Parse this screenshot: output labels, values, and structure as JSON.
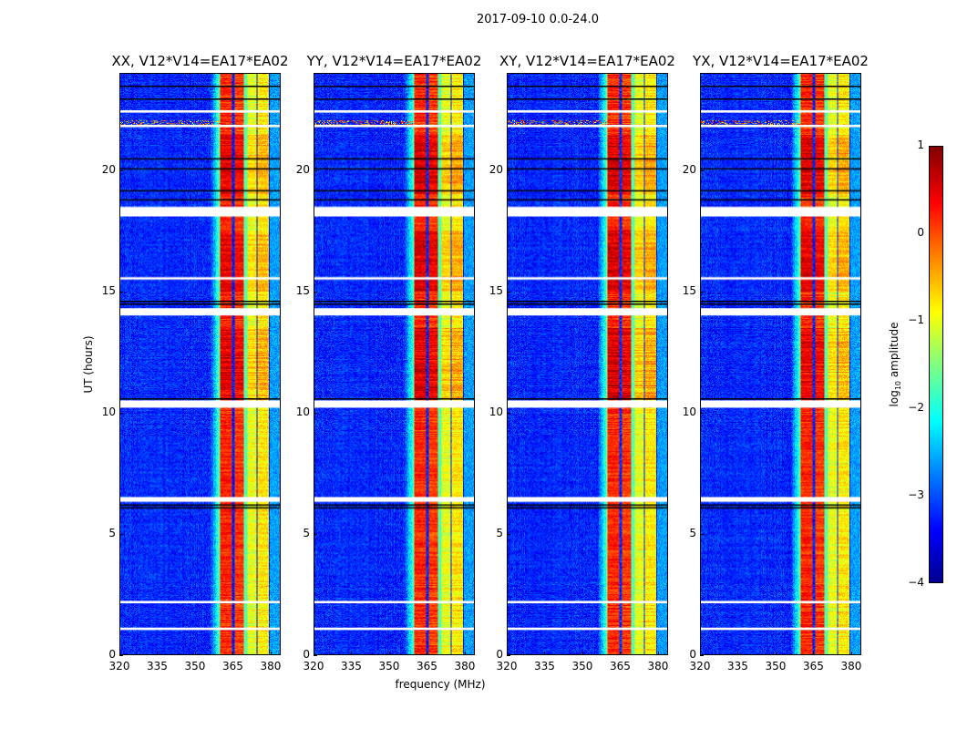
{
  "figure_title": "2017-09-10 0.0-24.0",
  "chart_data": {
    "type": "heatmap",
    "panels": [
      {
        "title": "XX, V12*V14=EA17*EA02"
      },
      {
        "title": "YY, V12*V14=EA17*EA02"
      },
      {
        "title": "XY, V12*V14=EA17*EA02"
      },
      {
        "title": "YX, V12*V14=EA17*EA02"
      }
    ],
    "xlabel": "frequency (MHz)",
    "ylabel": "UT (hours)",
    "xlim": [
      320,
      384
    ],
    "ylim": [
      0,
      24
    ],
    "x_ticks": [
      "320",
      "335",
      "350",
      "365",
      "380"
    ],
    "x_tick_values": [
      320,
      335,
      350,
      365,
      380
    ],
    "y_ticks": [
      "0",
      "5",
      "10",
      "15",
      "20"
    ],
    "y_tick_values": [
      0,
      5,
      10,
      15,
      20
    ],
    "colormap": "jet",
    "colorbar": {
      "label_main": "log",
      "label_sub": "10",
      "label_rest": " amplitude",
      "range": [
        -4,
        1
      ],
      "ticks": [
        "1",
        "0",
        "−1",
        "−2",
        "−3",
        "−4"
      ],
      "tick_values": [
        1,
        0,
        -1,
        -2,
        -3,
        -4
      ]
    },
    "background_log_amplitude": -3.2,
    "rfi_bands_mhz": [
      {
        "range": [
          360,
          365
        ],
        "log_amplitude": 0.2
      },
      {
        "range": [
          366,
          369.5
        ],
        "log_amplitude": 0.1
      },
      {
        "range": [
          371,
          374.5
        ],
        "log_amplitude": -1.0
      },
      {
        "range": [
          375,
          379.5
        ],
        "log_amplitude": -0.8
      }
    ],
    "flagged_hours": [
      [
        18.1,
        18.5
      ],
      [
        14.0,
        14.3
      ],
      [
        10.2,
        10.5
      ],
      [
        6.3,
        6.5
      ],
      [
        2.1,
        2.2
      ],
      [
        1.0,
        1.1
      ],
      [
        22.4,
        22.5
      ],
      [
        21.8,
        21.9
      ],
      [
        15.5,
        15.6
      ]
    ],
    "dark_line_hours": [
      23.5,
      23.0,
      20.5,
      20.1,
      19.2,
      18.8,
      14.6,
      14.5,
      10.6,
      6.2,
      6.1
    ]
  }
}
